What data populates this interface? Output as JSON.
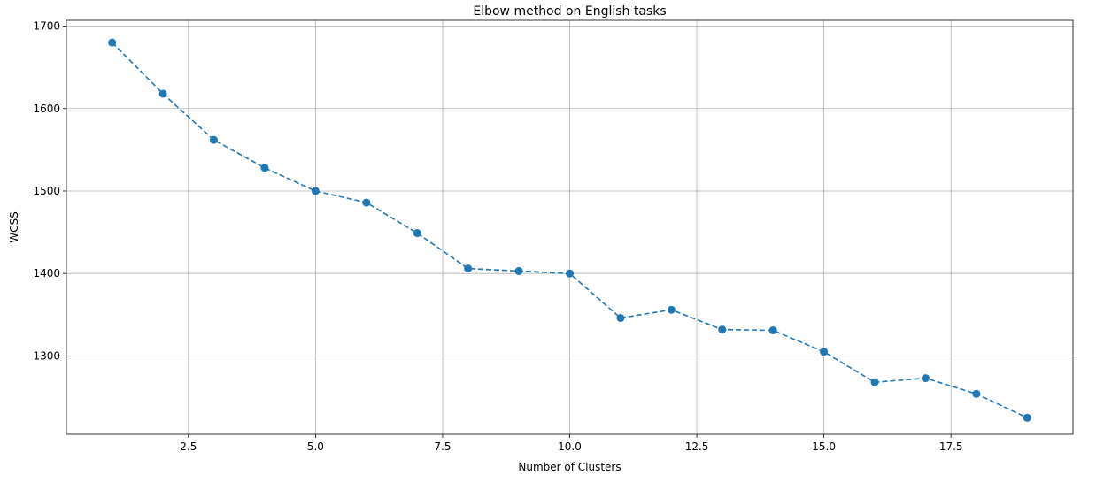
{
  "chart_data": {
    "type": "line",
    "title": "Elbow method on English tasks",
    "xlabel": "Number of Clusters",
    "ylabel": "WCSS",
    "xlim": [
      0.1,
      19.9
    ],
    "ylim": [
      1205,
      1707
    ],
    "xticks": [
      2.5,
      5.0,
      7.5,
      10.0,
      12.5,
      15.0,
      17.5
    ],
    "xtick_labels": [
      "2.5",
      "5.0",
      "7.5",
      "10.0",
      "12.5",
      "15.0",
      "17.5"
    ],
    "yticks": [
      1300,
      1400,
      1500,
      1600,
      1700
    ],
    "ytick_labels": [
      "1300",
      "1400",
      "1500",
      "1600",
      "1700"
    ],
    "grid": true,
    "series": [
      {
        "color": "#1f77b4",
        "line_style": "dashed",
        "marker": "circle",
        "x": [
          1,
          2,
          3,
          4,
          5,
          6,
          7,
          8,
          9,
          10,
          11,
          12,
          13,
          14,
          15,
          16,
          17,
          18,
          19
        ],
        "y": [
          1680,
          1618,
          1562,
          1528,
          1500,
          1486,
          1449,
          1406,
          1403,
          1400,
          1346,
          1356,
          1332,
          1331,
          1305,
          1268,
          1273,
          1254,
          1225
        ]
      }
    ]
  }
}
